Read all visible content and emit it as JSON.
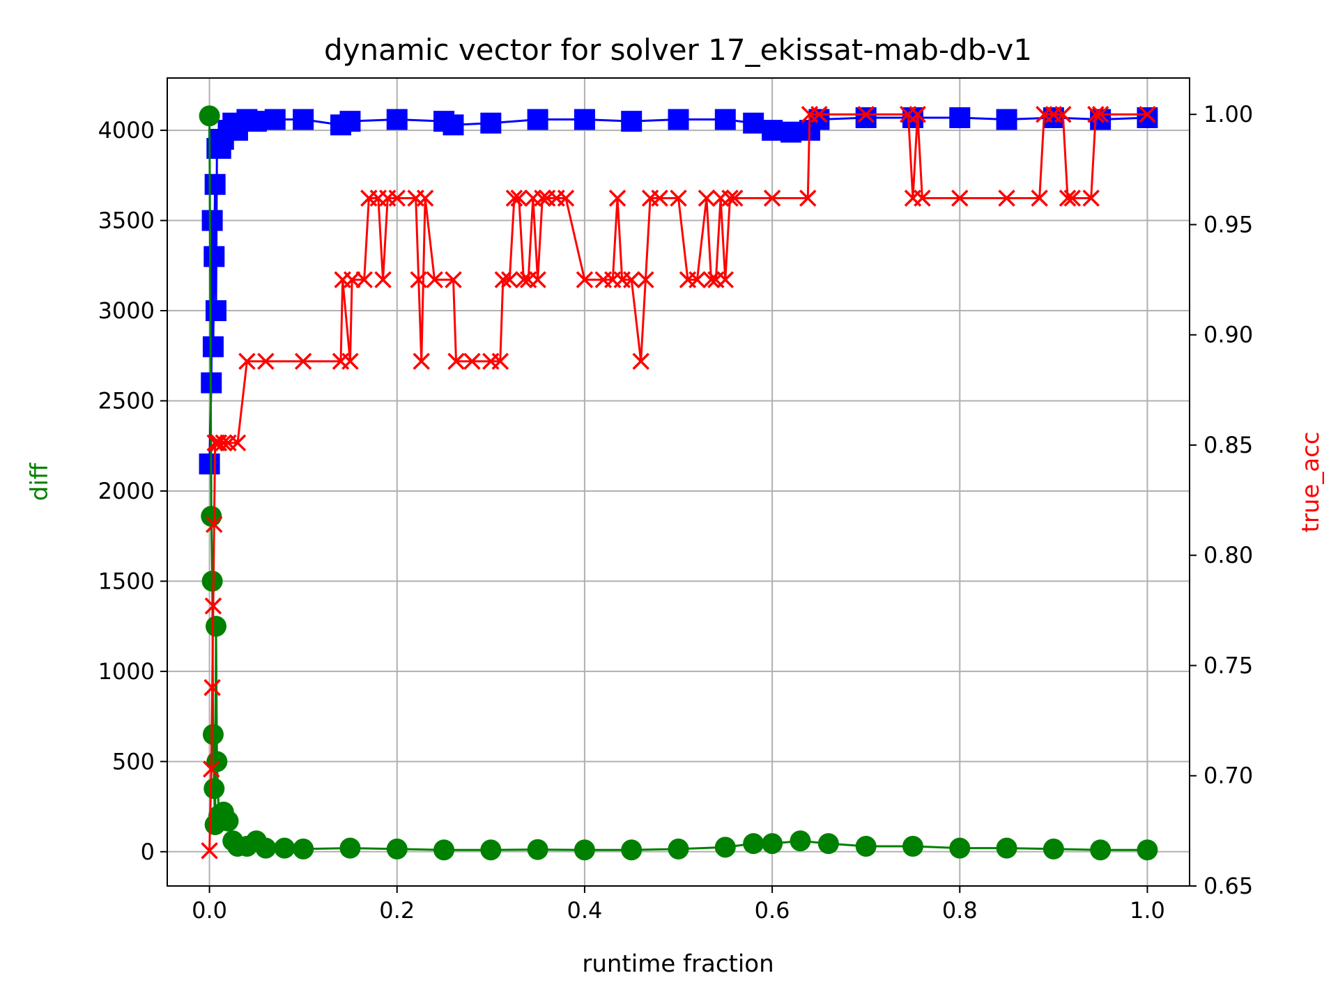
{
  "chart_data": {
    "type": "line",
    "title": "dynamic vector for solver 17_ekissat-mab-db-v1",
    "xlabel": "runtime fraction",
    "ylabel_left": "diff",
    "ylabel_right": "true_acc",
    "xlim": [
      -0.045,
      1.045
    ],
    "ylim_left": [
      -190,
      4290
    ],
    "ylim_right": [
      0.65,
      1.0165
    ],
    "x_ticks": [
      0.0,
      0.2,
      0.4,
      0.6,
      0.8,
      1.0
    ],
    "x_tick_labels": [
      "0.0",
      "0.2",
      "0.4",
      "0.6",
      "0.8",
      "1.0"
    ],
    "y_left_ticks": [
      0,
      500,
      1000,
      1500,
      2000,
      2500,
      3000,
      3500,
      4000
    ],
    "y_left_tick_labels": [
      "0",
      "500",
      "1000",
      "1500",
      "2000",
      "2500",
      "3000",
      "3500",
      "4000"
    ],
    "y_right_ticks": [
      0.65,
      0.7,
      0.75,
      0.8,
      0.85,
      0.9,
      0.95,
      1.0
    ],
    "y_right_tick_labels": [
      "0.65",
      "0.70",
      "0.75",
      "0.80",
      "0.85",
      "0.90",
      "0.95",
      "1.00"
    ],
    "grid": true,
    "label_colors": {
      "diff": "#008000",
      "true_acc": "#ff0000"
    },
    "series": [
      {
        "axis": "left",
        "color": "#0000ff",
        "marker": "square",
        "x": [
          0.0,
          0.002,
          0.003,
          0.004,
          0.005,
          0.006,
          0.007,
          0.008,
          0.01,
          0.012,
          0.015,
          0.02,
          0.025,
          0.03,
          0.04,
          0.05,
          0.07,
          0.1,
          0.14,
          0.15,
          0.2,
          0.25,
          0.26,
          0.3,
          0.35,
          0.4,
          0.45,
          0.5,
          0.55,
          0.58,
          0.6,
          0.62,
          0.64,
          0.65,
          0.7,
          0.75,
          0.8,
          0.85,
          0.9,
          0.95,
          1.0
        ],
        "y": [
          2150,
          2600,
          3500,
          2800,
          3300,
          3700,
          3000,
          3900,
          3950,
          3900,
          3950,
          4000,
          4040,
          4000,
          4060,
          4050,
          4060,
          4060,
          4030,
          4050,
          4060,
          4050,
          4030,
          4040,
          4060,
          4060,
          4050,
          4060,
          4060,
          4040,
          4000,
          3990,
          4000,
          4060,
          4070,
          4070,
          4070,
          4060,
          4070,
          4060,
          4070
        ]
      },
      {
        "axis": "left",
        "color": "#008000",
        "marker": "circle",
        "x": [
          0.0,
          0.002,
          0.003,
          0.004,
          0.005,
          0.006,
          0.007,
          0.008,
          0.01,
          0.015,
          0.02,
          0.025,
          0.03,
          0.04,
          0.05,
          0.06,
          0.08,
          0.1,
          0.15,
          0.2,
          0.25,
          0.3,
          0.35,
          0.4,
          0.45,
          0.5,
          0.55,
          0.58,
          0.6,
          0.63,
          0.66,
          0.7,
          0.75,
          0.8,
          0.85,
          0.9,
          0.95,
          1.0
        ],
        "y": [
          4080,
          1860,
          1500,
          650,
          350,
          150,
          1250,
          500,
          200,
          220,
          170,
          60,
          30,
          30,
          60,
          20,
          20,
          15,
          20,
          15,
          10,
          10,
          12,
          10,
          10,
          15,
          25,
          45,
          45,
          60,
          45,
          30,
          30,
          20,
          20,
          15,
          10,
          10
        ]
      },
      {
        "axis": "right",
        "color": "#ff0000",
        "marker": "x",
        "x": [
          0.0,
          0.002,
          0.003,
          0.004,
          0.005,
          0.006,
          0.008,
          0.01,
          0.015,
          0.02,
          0.03,
          0.04,
          0.06,
          0.1,
          0.14,
          0.142,
          0.15,
          0.152,
          0.165,
          0.17,
          0.18,
          0.185,
          0.19,
          0.2,
          0.22,
          0.223,
          0.226,
          0.23,
          0.24,
          0.26,
          0.263,
          0.28,
          0.3,
          0.31,
          0.313,
          0.32,
          0.325,
          0.33,
          0.335,
          0.34,
          0.345,
          0.35,
          0.355,
          0.36,
          0.37,
          0.38,
          0.4,
          0.42,
          0.43,
          0.435,
          0.44,
          0.45,
          0.46,
          0.465,
          0.47,
          0.48,
          0.5,
          0.51,
          0.52,
          0.53,
          0.535,
          0.54,
          0.545,
          0.55,
          0.555,
          0.56,
          0.6,
          0.638,
          0.64,
          0.65,
          0.7,
          0.745,
          0.75,
          0.755,
          0.76,
          0.8,
          0.85,
          0.885,
          0.89,
          0.9,
          0.91,
          0.915,
          0.92,
          0.94,
          0.945,
          0.95,
          1.0
        ],
        "y": [
          0.666,
          0.703,
          0.74,
          0.777,
          0.814,
          0.851,
          0.851,
          0.851,
          0.851,
          0.851,
          0.851,
          0.888,
          0.888,
          0.888,
          0.888,
          0.925,
          0.888,
          0.925,
          0.925,
          0.962,
          0.962,
          0.925,
          0.962,
          0.962,
          0.962,
          0.925,
          0.888,
          0.962,
          0.925,
          0.925,
          0.888,
          0.888,
          0.888,
          0.888,
          0.925,
          0.925,
          0.962,
          0.962,
          0.925,
          0.925,
          0.962,
          0.925,
          0.962,
          0.962,
          0.962,
          0.962,
          0.925,
          0.925,
          0.925,
          0.962,
          0.925,
          0.925,
          0.888,
          0.925,
          0.962,
          0.962,
          0.962,
          0.925,
          0.925,
          0.962,
          0.925,
          0.925,
          0.962,
          0.925,
          0.962,
          0.962,
          0.962,
          0.962,
          1.0,
          1.0,
          1.0,
          1.0,
          0.962,
          1.0,
          0.962,
          0.962,
          0.962,
          0.962,
          1.0,
          1.0,
          1.0,
          0.962,
          0.962,
          0.962,
          1.0,
          1.0,
          1.0
        ]
      }
    ]
  }
}
